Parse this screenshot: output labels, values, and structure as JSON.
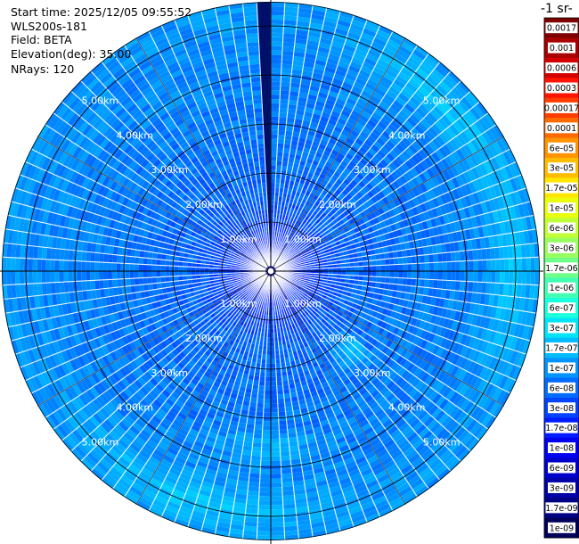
{
  "header": {
    "lines": [
      "Start time: 2025/12/05 09:55:52",
      "WLS200s-181",
      "Field: BETA",
      "Elevation(deg): 35.00",
      "NRays: 120"
    ]
  },
  "colorbar": {
    "title_visible": "-1 sr-",
    "ticks": [
      "0.0017",
      "0.001",
      "0.0006",
      "0.0003",
      "0.00017",
      "0.0001",
      "6e-05",
      "3e-05",
      "1.7e-05",
      "1e-05",
      "6e-06",
      "3e-06",
      "1.7e-06",
      "1e-06",
      "6e-07",
      "3e-07",
      "1.7e-07",
      "1e-07",
      "6e-08",
      "3e-08",
      "1.7e-08",
      "1e-08",
      "6e-09",
      "3e-09",
      "1.7e-09",
      "1e-09"
    ],
    "colors": [
      "#7f0000",
      "#a80000",
      "#d40000",
      "#ff1400",
      "#ff3d00",
      "#ff6a00",
      "#ff9300",
      "#ffbc00",
      "#ffe600",
      "#e9ff0e",
      "#c0ff37",
      "#97ff60",
      "#6dff8a",
      "#43ffb3",
      "#1affdc",
      "#00e4f8",
      "#00bcff",
      "#0094ff",
      "#006cff",
      "#0044ff",
      "#001cff",
      "#0000f1",
      "#0000cd",
      "#0000a8",
      "#000084",
      "#00005a"
    ]
  },
  "chart_data": {
    "type": "heatmap",
    "projection": "polar-ppi",
    "field": "BETA",
    "n_rays": 120,
    "elevation_deg": 35.0,
    "range_rings_km": [
      1,
      2,
      3,
      4,
      5
    ],
    "range_ring_labels": [
      "1.00km",
      "2.00km",
      "3.00km",
      "4.00km",
      "5.00km"
    ],
    "max_range_km": 5.5,
    "value_range": [
      1e-09,
      0.0017
    ],
    "scale": "log",
    "colormap": "jet",
    "blocked_azimuth_deg": 358.5,
    "dominant_values_approx": [
      3e-08,
      6e-08,
      1e-07
    ]
  }
}
